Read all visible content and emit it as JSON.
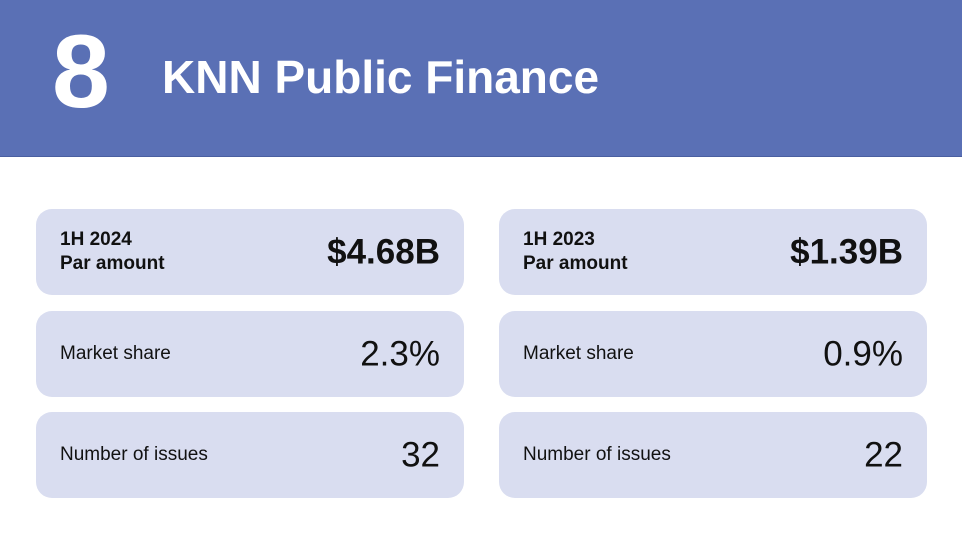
{
  "header": {
    "rank": "8",
    "firm": "KNN Public Finance"
  },
  "cards": {
    "left": {
      "par_period": "1H 2024",
      "par_label": "Par amount",
      "par_value": "$4.68B",
      "share_label": "Market share",
      "share_value": "2.3%",
      "issues_label": "Number of issues",
      "issues_value": "32"
    },
    "right": {
      "par_period": "1H 2023",
      "par_label": "Par amount",
      "par_value": "$1.39B",
      "share_label": "Market share",
      "share_value": "0.9%",
      "issues_label": "Number of issues",
      "issues_value": "22"
    }
  },
  "colors": {
    "header_bg": "#5a70b5",
    "card_bg": "#d9ddf0",
    "text": "#111111"
  }
}
